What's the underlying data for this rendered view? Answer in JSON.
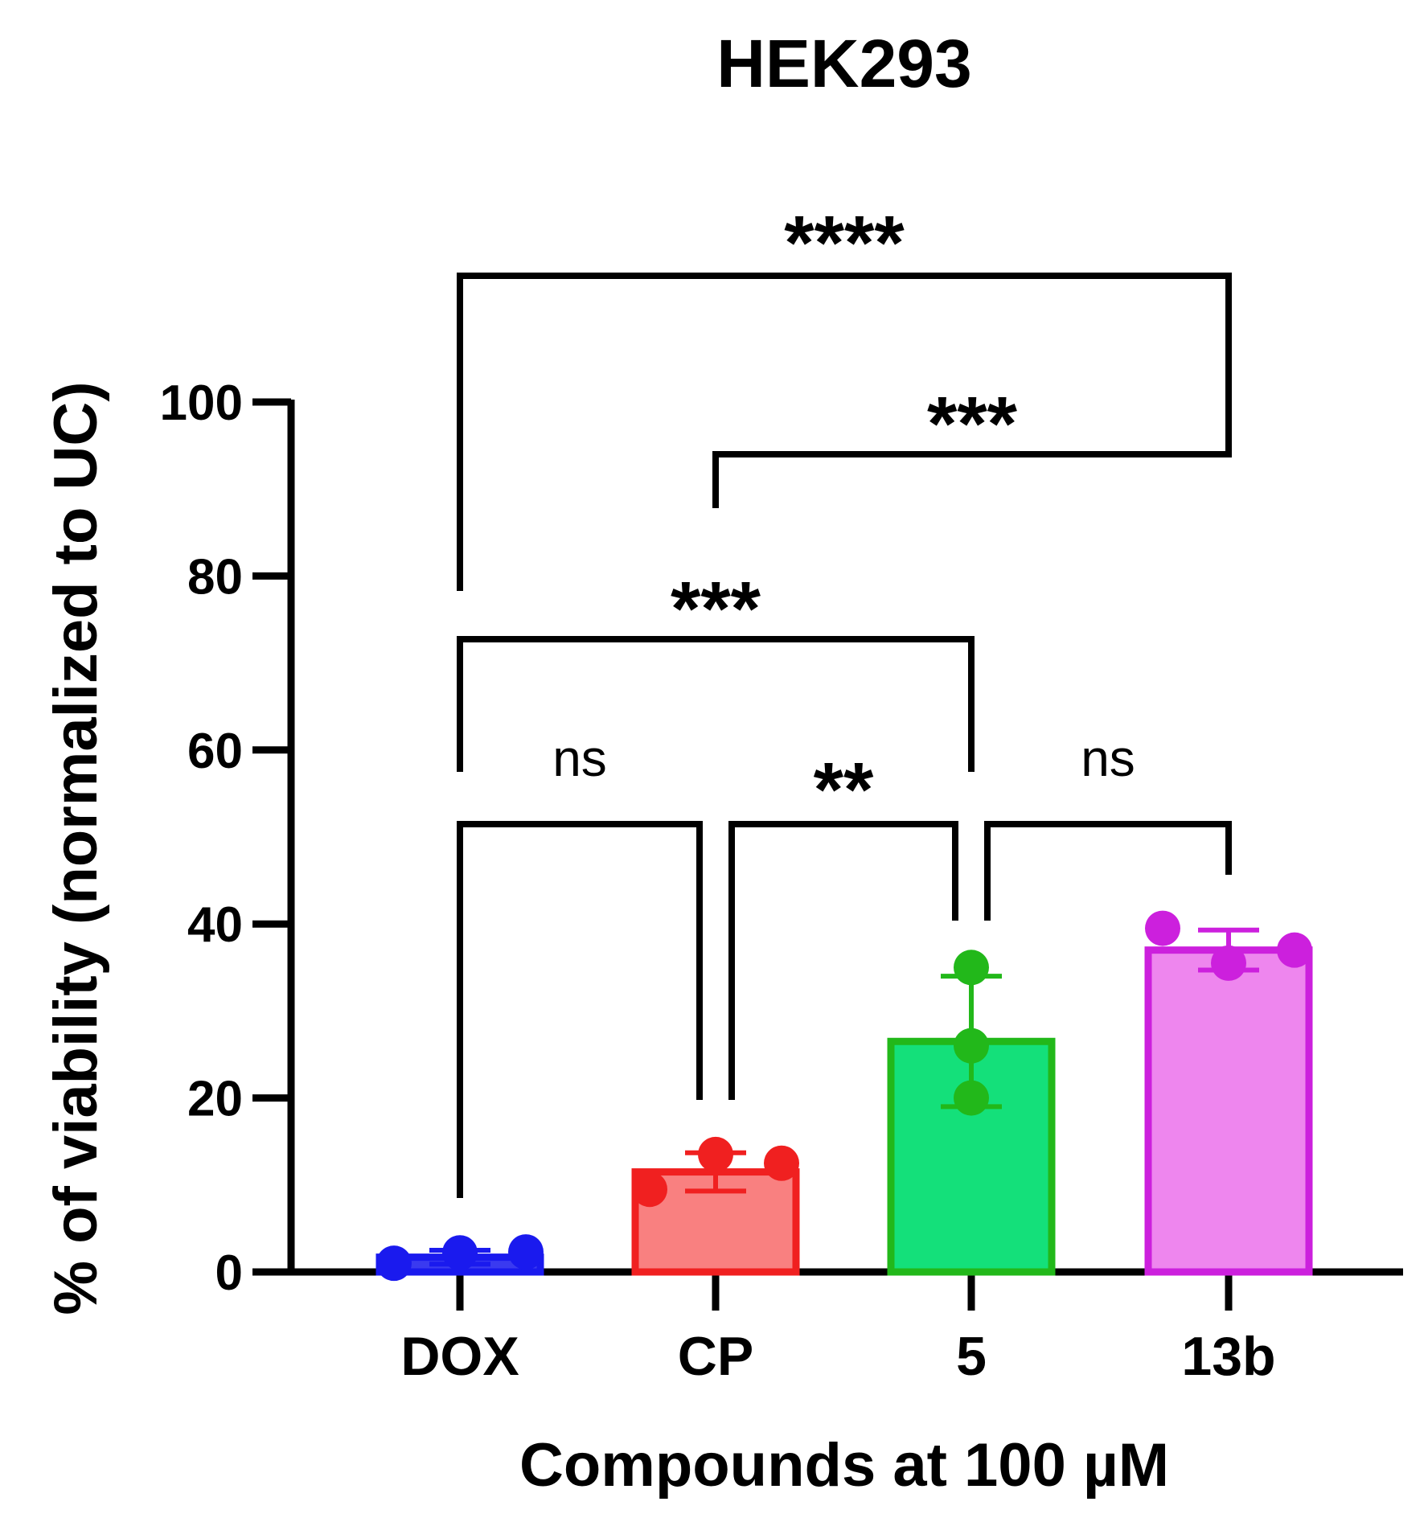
{
  "chart_data": {
    "type": "bar",
    "title": "HEK293",
    "xlabel": "Compounds at 100 µM",
    "ylabel": "% of viability (normalized to UC)",
    "ylim": [
      0,
      100
    ],
    "yticks": [
      0,
      20,
      40,
      60,
      80,
      100
    ],
    "grid": false,
    "categories": [
      "DOX",
      "CP",
      "5",
      "13b"
    ],
    "values": [
      1.7,
      11.5,
      26.5,
      37
    ],
    "errors": [
      0.8,
      2.2,
      7.5,
      2.3
    ],
    "points": [
      [
        1.0,
        2.2,
        2.3
      ],
      [
        9.5,
        13.5,
        12.5
      ],
      [
        35,
        26,
        20
      ],
      [
        39.5,
        35.5,
        37
      ]
    ],
    "colors": {
      "fill": [
        "#3a3af0",
        "#f98080",
        "#14e07a",
        "#ee86ee"
      ],
      "stroke": [
        "#1a1aee",
        "#f02020",
        "#22b81a",
        "#cc20dd"
      ]
    },
    "comparisons": [
      {
        "from": "DOX",
        "to": "13b",
        "label": "****"
      },
      {
        "from": "CP",
        "to": "13b",
        "label": "***"
      },
      {
        "from": "DOX",
        "to": "5",
        "label": "***"
      },
      {
        "from": "DOX",
        "to": "CP",
        "label": "ns"
      },
      {
        "from": "CP",
        "to": "5",
        "label": "**"
      },
      {
        "from": "5",
        "to": "13b",
        "label": "ns"
      }
    ]
  }
}
